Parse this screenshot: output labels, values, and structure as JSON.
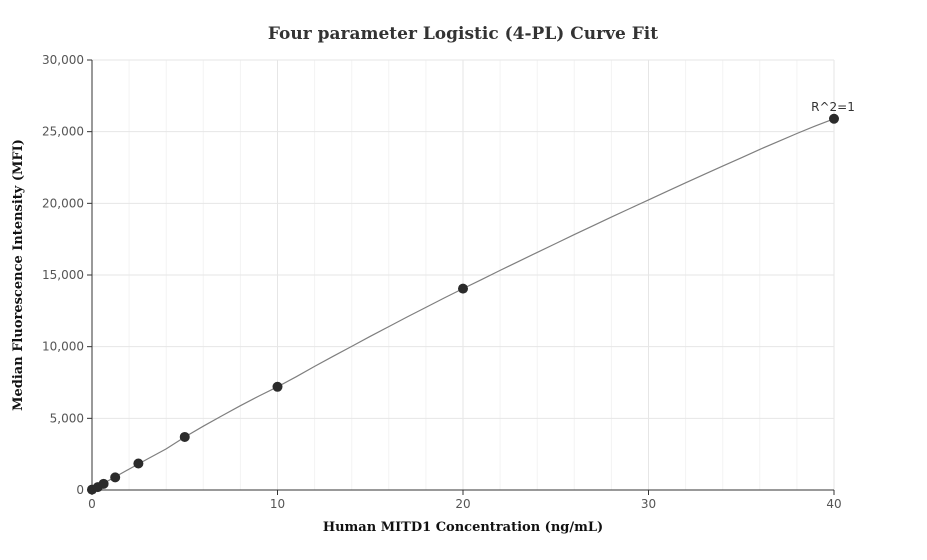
{
  "chart_data": {
    "type": "scatter",
    "title": "Four parameter Logistic (4-PL) Curve Fit",
    "xlabel": "Human MITD1 Concentration (ng/mL)",
    "ylabel": "Median Fluorescence Intensity (MFI)",
    "xlim": [
      0,
      40
    ],
    "ylim": [
      0,
      30000
    ],
    "x_ticks": [
      0,
      10,
      20,
      30,
      40
    ],
    "x_tick_labels": [
      "0",
      "10",
      "20",
      "30",
      "40"
    ],
    "y_ticks": [
      0,
      5000,
      10000,
      15000,
      20000,
      25000,
      30000
    ],
    "y_tick_labels": [
      "0",
      "5,000",
      "10,000",
      "15,000",
      "20,000",
      "25,000",
      "30,000"
    ],
    "grid": true,
    "series": [
      {
        "x": [
          0,
          0.3125,
          0.625,
          1.25,
          2.5,
          5,
          10,
          20,
          40
        ],
        "y": [
          30,
          200,
          430,
          880,
          1850,
          3700,
          7200,
          14050,
          25900
        ],
        "marker_color": "#2b2b2b"
      }
    ],
    "fit_curve": {
      "x": [
        0,
        1,
        2,
        3,
        4,
        5,
        6,
        7,
        8,
        9,
        10,
        11,
        12,
        13,
        14,
        15,
        16,
        17,
        18,
        19,
        20,
        21,
        22,
        23,
        24,
        25,
        26,
        27,
        28,
        29,
        30,
        31,
        32,
        33,
        34,
        35,
        36,
        37,
        38,
        39,
        40
      ],
      "y": [
        30,
        730,
        1460,
        2170,
        2870,
        3700,
        4450,
        5170,
        5880,
        6560,
        7200,
        7900,
        8620,
        9330,
        10020,
        10720,
        11400,
        12080,
        12740,
        13400,
        14050,
        14680,
        15320,
        15950,
        16580,
        17200,
        17820,
        18430,
        19040,
        19640,
        20240,
        20840,
        21430,
        22020,
        22600,
        23180,
        23760,
        24320,
        24870,
        25400,
        25900
      ],
      "color": "#7f7f7f"
    },
    "annotations": [
      {
        "text": "R^2=1",
        "x": 40,
        "y": 25900
      }
    ]
  }
}
